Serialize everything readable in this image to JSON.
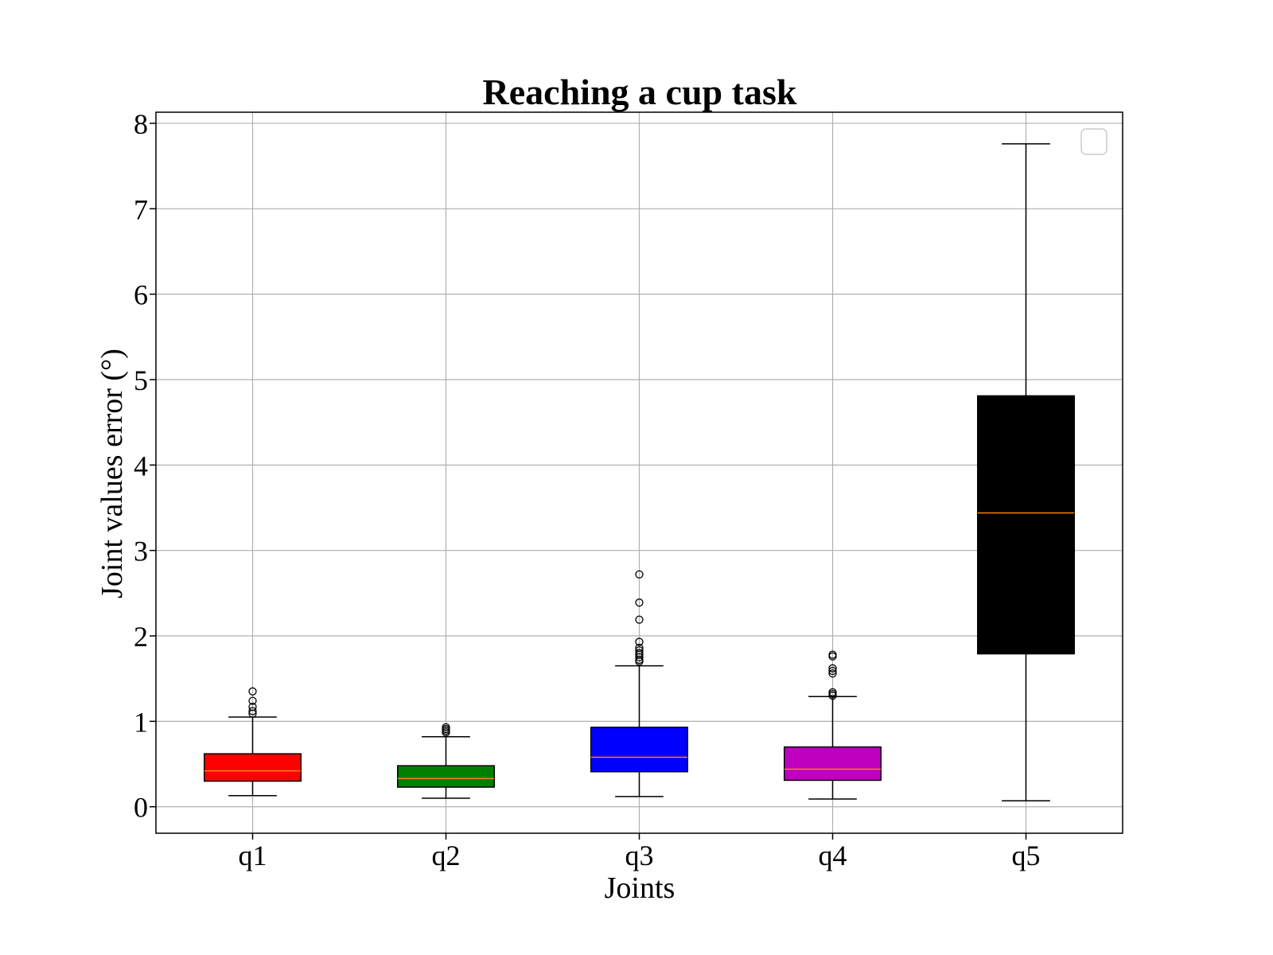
{
  "chart_data": {
    "type": "box",
    "title": "Reaching a cup task",
    "xlabel": "Joints",
    "ylabel": "Joint values error (°)",
    "categories": [
      "q1",
      "q2",
      "q3",
      "q4",
      "q5"
    ],
    "yticks": [
      "0",
      "1",
      "2",
      "3",
      "4",
      "5",
      "6",
      "7",
      "8"
    ],
    "ylim": [
      -0.31,
      8.13
    ],
    "grid": true,
    "legend": "top-right, empty",
    "boxes": [
      {
        "category": "q1",
        "color": "#ff0000",
        "whisker_low": 0.13,
        "q1": 0.3,
        "median": 0.42,
        "q3": 0.62,
        "whisker_high": 1.05,
        "outliers": [
          1.09,
          1.12,
          1.17,
          1.24,
          1.35
        ]
      },
      {
        "category": "q2",
        "color": "#008000",
        "whisker_low": 0.1,
        "q1": 0.23,
        "median": 0.33,
        "q3": 0.48,
        "whisker_high": 0.82,
        "outliers": [
          0.87,
          0.89,
          0.91,
          0.93
        ]
      },
      {
        "category": "q3",
        "color": "#0000ff",
        "whisker_low": 0.12,
        "q1": 0.41,
        "median": 0.58,
        "q3": 0.93,
        "whisker_high": 1.65,
        "outliers": [
          1.7,
          1.72,
          1.75,
          1.78,
          1.8,
          1.83,
          1.86,
          1.93,
          2.19,
          2.39,
          2.72
        ]
      },
      {
        "category": "q4",
        "color": "#bf00bf",
        "whisker_low": 0.09,
        "q1": 0.31,
        "median": 0.44,
        "q3": 0.7,
        "whisker_high": 1.29,
        "outliers": [
          1.3,
          1.32,
          1.34,
          1.56,
          1.59,
          1.62,
          1.76,
          1.78
        ]
      },
      {
        "category": "q5",
        "color": "#000000",
        "whisker_low": 0.07,
        "q1": 1.79,
        "median": 3.44,
        "q3": 4.81,
        "whisker_high": 7.76,
        "outliers": []
      }
    ],
    "median_color": "#ff7f0e"
  }
}
